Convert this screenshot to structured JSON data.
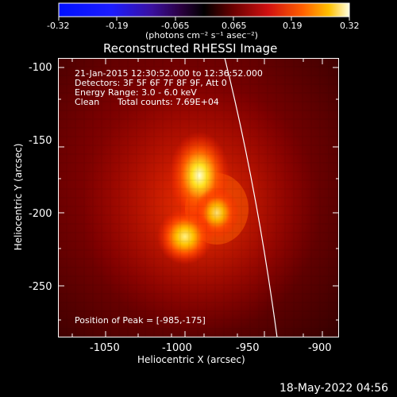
{
  "colorbar": {
    "tick_labels": [
      "-0.32",
      "-0.19",
      "-0.065",
      "0.065",
      "0.19",
      "0.32"
    ],
    "unit_label": "(photons cm⁻² s⁻¹ asec⁻²)"
  },
  "plot": {
    "title": "Reconstructed RHESSI Image",
    "xlabel": "Heliocentric X (arcsec)",
    "ylabel": "Heliocentric Y (arcsec)",
    "xticks": [
      "-1050",
      "-1000",
      "-950",
      "-900"
    ],
    "yticks": [
      "-100",
      "-150",
      "-200",
      "-250"
    ]
  },
  "annotations": {
    "line1": "21-Jan-2015 12:30:52.000 to 12:36:52.000",
    "line2": "Detectors: 3F 5F 6F 7F 8F 9F, Att 0",
    "line3": "Energy Range: 3.0 - 6.0 keV",
    "line4_a": "Clean",
    "line4_b": "Total counts: 7.69E+04",
    "peak": "Position of Peak = [-985,-175]"
  },
  "footer": {
    "date": "18-May-2022 04:56"
  }
}
